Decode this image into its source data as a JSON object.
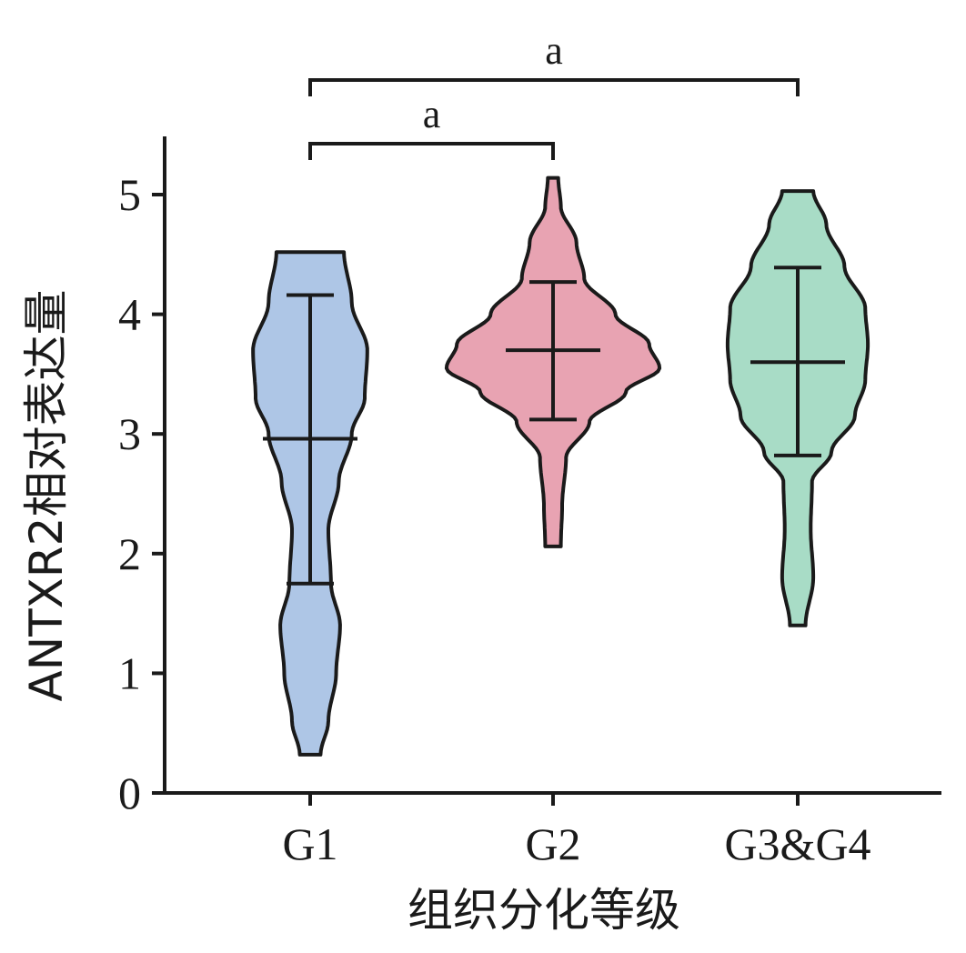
{
  "chart_data": {
    "type": "violin",
    "title": "",
    "xlabel": "组织分化等级",
    "ylabel": "ANTXR2相对表达量",
    "categories": [
      "G1",
      "G2",
      "G3&G4"
    ],
    "ylim": [
      0,
      5.5
    ],
    "yticks": [
      0,
      1,
      2,
      3,
      4,
      5
    ],
    "grid": false,
    "legend": "none",
    "groups": [
      {
        "name": "G1",
        "color": "#aec6e6",
        "min": 0.32,
        "max": 4.52,
        "mean": 2.96,
        "sd_low": 1.75,
        "sd_high": 4.16,
        "density": [
          [
            0.32,
            0.04
          ],
          [
            0.6,
            0.07
          ],
          [
            1.0,
            0.1
          ],
          [
            1.4,
            0.115
          ],
          [
            1.75,
            0.08
          ],
          [
            2.2,
            0.07
          ],
          [
            2.6,
            0.11
          ],
          [
            3.0,
            0.16
          ],
          [
            3.3,
            0.21
          ],
          [
            3.7,
            0.22
          ],
          [
            4.1,
            0.16
          ],
          [
            4.52,
            0.13
          ]
        ]
      },
      {
        "name": "G2",
        "color": "#e8a3b2",
        "min": 2.06,
        "max": 5.14,
        "mean": 3.7,
        "sd_low": 3.12,
        "sd_high": 4.27,
        "density": [
          [
            2.06,
            0.03
          ],
          [
            2.4,
            0.035
          ],
          [
            2.8,
            0.05
          ],
          [
            3.1,
            0.14
          ],
          [
            3.35,
            0.28
          ],
          [
            3.55,
            0.41
          ],
          [
            3.75,
            0.37
          ],
          [
            4.0,
            0.24
          ],
          [
            4.3,
            0.12
          ],
          [
            4.6,
            0.09
          ],
          [
            4.9,
            0.03
          ],
          [
            5.14,
            0.02
          ]
        ]
      },
      {
        "name": "G3&G4",
        "color": "#a8dcc6",
        "min": 1.4,
        "max": 5.03,
        "mean": 3.6,
        "sd_low": 2.82,
        "sd_high": 4.39,
        "density": [
          [
            1.4,
            0.03
          ],
          [
            1.8,
            0.06
          ],
          [
            2.2,
            0.05
          ],
          [
            2.6,
            0.055
          ],
          [
            2.85,
            0.13
          ],
          [
            3.15,
            0.22
          ],
          [
            3.45,
            0.26
          ],
          [
            3.75,
            0.27
          ],
          [
            4.05,
            0.26
          ],
          [
            4.4,
            0.18
          ],
          [
            4.75,
            0.11
          ],
          [
            5.03,
            0.06
          ]
        ]
      }
    ],
    "significance": [
      {
        "from": "G1",
        "to": "G2",
        "label": "a"
      },
      {
        "from": "G1",
        "to": "G3&G4",
        "label": "a"
      }
    ]
  }
}
